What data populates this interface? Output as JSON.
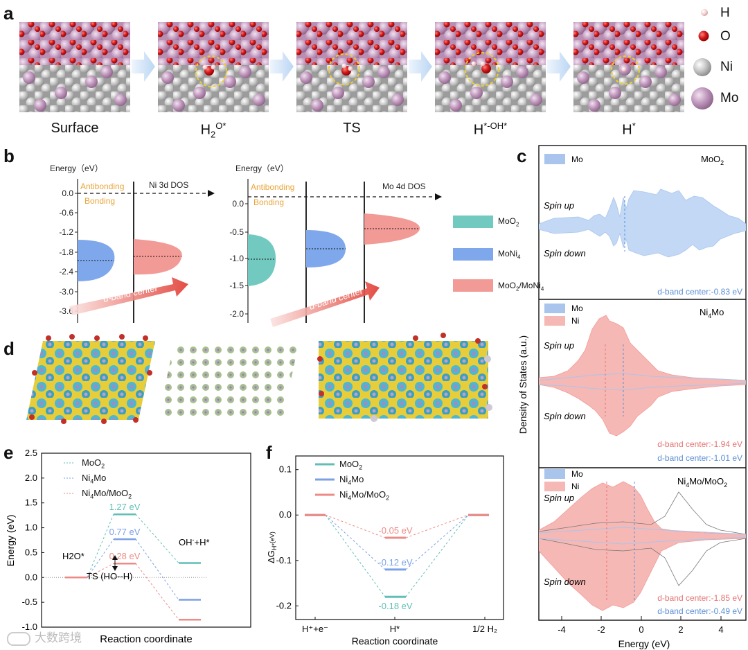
{
  "panels": {
    "a": "a",
    "b": "b",
    "c": "c",
    "d": "d",
    "e": "e",
    "f": "f"
  },
  "a": {
    "steps": [
      {
        "label": "Surface",
        "sub": "",
        "sup": ""
      },
      {
        "label": "H",
        "sub": "2",
        "sup": "O*"
      },
      {
        "label": "TS",
        "sub": "",
        "sup": ""
      },
      {
        "label": "H",
        "sub": "",
        "sup": "*-OH*"
      },
      {
        "label": "H",
        "sub": "",
        "sup": "*"
      }
    ],
    "legend": [
      {
        "label": "H",
        "color": "#f2c9c9"
      },
      {
        "label": "O",
        "color": "#d11d1d"
      },
      {
        "label": "Ni",
        "color": "#b9b9b9"
      },
      {
        "label": "Mo",
        "color": "#c49ec0"
      }
    ]
  },
  "b": {
    "energy_label": "Energy（eV）",
    "left": {
      "ticks": [
        "0.0",
        "-0.6",
        "-1.2",
        "-1.8",
        "-2.4",
        "-3.0",
        "-3.6"
      ],
      "dos": "Ni 3d DOS",
      "antibonding": "Antibonding",
      "bonding": "Bonding",
      "arrow": "d-band center"
    },
    "right": {
      "ticks": [
        "0.0",
        "-0.5",
        "-1.0",
        "-1.5",
        "-2.0"
      ],
      "dos": "Mo 4d DOS",
      "antibonding": "Antibonding",
      "bonding": "Bonding",
      "arrow": "d-band center"
    },
    "legend": [
      {
        "label": "MoO",
        "sub": "2",
        "tail": "",
        "color": "#72c9c0"
      },
      {
        "label": "MoNi",
        "sub": "4",
        "tail": "",
        "color": "#7fa8ec"
      },
      {
        "label": "MoO",
        "sub": "2",
        "tail": "/MoNi",
        "sub2": "4",
        "color": "#f29a96"
      }
    ]
  },
  "c": {
    "ylabel": "Density of States (a.u.)",
    "xlabel": "Energy (eV)",
    "xticks": [
      "-4",
      "-2",
      "0",
      "2",
      "4"
    ],
    "xlim": [
      -5,
      5
    ],
    "spin_up": "Spin up",
    "spin_down": "Spin down",
    "sub1": {
      "title": "MoO",
      "title_sub": "2",
      "legend": [
        "Mo"
      ],
      "centers": [
        {
          "text": "d-band center:-0.83 eV",
          "color": "#5b8fd6"
        }
      ]
    },
    "sub2": {
      "title": "Ni",
      "title_sub": "4",
      "title_tail": "Mo",
      "legend": [
        "Mo",
        "Ni"
      ],
      "centers": [
        {
          "text": "d-band center:-1.94 eV",
          "color": "#e57373"
        },
        {
          "text": "d-band center:-1.01 eV",
          "color": "#5b8fd6"
        }
      ]
    },
    "sub3": {
      "title": "Ni",
      "title_sub": "4",
      "title_tail": "Mo/MoO",
      "title_sub2": "2",
      "legend": [
        "Mo",
        "Ni"
      ],
      "centers": [
        {
          "text": "d-band center:-1.85 eV",
          "color": "#e57373"
        },
        {
          "text": "d-band center:-0.49 eV",
          "color": "#5b8fd6"
        }
      ]
    }
  },
  "chart_data": [
    {
      "type": "line",
      "panel": "e",
      "ylabel": "Energy (eV)",
      "xlabel": "Reaction coordinate",
      "ylim": [
        -1.0,
        2.5
      ],
      "yticks": [
        "2.5",
        "2.0",
        "1.5",
        "1.0",
        "0.5",
        "0.0",
        "-0.5",
        "-1.0"
      ],
      "categories": [
        "H2O*",
        "TS (HO--H)",
        "OH-+H*"
      ],
      "series": [
        {
          "name": "MoO2",
          "color": "#5fbfb5",
          "values": [
            0.0,
            1.27,
            0.29
          ]
        },
        {
          "name": "Ni4Mo",
          "color": "#7aa1e6",
          "values": [
            0.0,
            0.77,
            -0.45
          ]
        },
        {
          "name": "Ni4Mo/MoO2",
          "color": "#ee8a86",
          "values": [
            0.0,
            0.28,
            -0.85
          ]
        }
      ],
      "data_labels": [
        "1.27 eV",
        "0.77 eV",
        "0.28 eV"
      ],
      "annotations": {
        "h2o": "H2O*",
        "ts": "TS (HO--H)",
        "oh": "OH",
        "oh_sup": "-",
        "oh_tail": "+H*"
      }
    },
    {
      "type": "line",
      "panel": "f",
      "ylabel": "ΔG",
      "ylabel_sub": "H*",
      "ylabel_unit": "(eV)",
      "xlabel": "Reaction coordinate",
      "ylim": [
        -0.23,
        0.13
      ],
      "yticks": [
        "0.1",
        "0.0",
        "-0.1",
        "-0.2"
      ],
      "categories": [
        "H⁺+e⁻",
        "H*",
        "1/2 H₂"
      ],
      "series": [
        {
          "name": "MoO2",
          "color": "#5fbfb5",
          "values": [
            0.0,
            -0.18,
            0.0
          ]
        },
        {
          "name": "Ni4Mo",
          "color": "#7aa1e6",
          "values": [
            0.0,
            -0.12,
            0.0
          ]
        },
        {
          "name": "Ni4Mo/MoO2",
          "color": "#ee8a86",
          "values": [
            0.0,
            -0.05,
            0.0
          ]
        }
      ],
      "data_labels": [
        "-0.18 eV",
        "-0.12 eV",
        "-0.05 eV"
      ]
    }
  ],
  "watermark": "大数跨境"
}
